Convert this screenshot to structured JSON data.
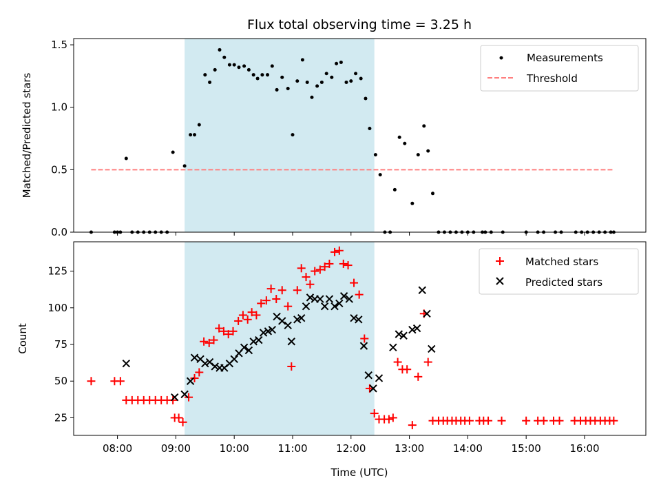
{
  "chart_data": {
    "title": "Flux total observing time = 3.25 h",
    "xlabel": "Time (UTC)",
    "x_unit": "hours UTC",
    "xlim": [
      7.25,
      17.05
    ],
    "x_ticks": [
      8,
      9,
      10,
      11,
      12,
      13,
      14,
      15,
      16
    ],
    "x_tick_labels": [
      "08:00",
      "09:00",
      "10:00",
      "11:00",
      "12:00",
      "13:00",
      "14:00",
      "15:00",
      "16:00"
    ],
    "shaded_span": {
      "x_start": 9.15,
      "x_end": 12.4,
      "color": "#add8e6"
    },
    "panels": [
      {
        "type": "scatter",
        "ylabel": "Matched/Predicted stars",
        "ylim": [
          0,
          1.55
        ],
        "y_ticks": [
          0.0,
          0.5,
          1.0,
          1.5
        ],
        "y_tick_labels": [
          "0.0",
          "0.5",
          "1.0",
          "1.5"
        ],
        "legend_position": "top-right",
        "series": [
          {
            "name": "Measurements",
            "marker": "dot",
            "color": "#000000",
            "points": [
              [
                7.55,
                0
              ],
              [
                7.95,
                0
              ],
              [
                8.0,
                0
              ],
              [
                8.05,
                0
              ],
              [
                8.15,
                0.59
              ],
              [
                8.25,
                0
              ],
              [
                8.35,
                0
              ],
              [
                8.45,
                0
              ],
              [
                8.55,
                0
              ],
              [
                8.65,
                0
              ],
              [
                8.75,
                0
              ],
              [
                8.85,
                0
              ],
              [
                8.95,
                0.64
              ],
              [
                9.15,
                0.53
              ],
              [
                9.25,
                0.78
              ],
              [
                9.32,
                0.78
              ],
              [
                9.4,
                0.86
              ],
              [
                9.5,
                1.26
              ],
              [
                9.58,
                1.2
              ],
              [
                9.67,
                1.3
              ],
              [
                9.75,
                1.46
              ],
              [
                9.83,
                1.4
              ],
              [
                9.92,
                1.34
              ],
              [
                10.0,
                1.34
              ],
              [
                10.08,
                1.32
              ],
              [
                10.17,
                1.33
              ],
              [
                10.25,
                1.3
              ],
              [
                10.33,
                1.26
              ],
              [
                10.4,
                1.23
              ],
              [
                10.48,
                1.26
              ],
              [
                10.57,
                1.26
              ],
              [
                10.65,
                1.33
              ],
              [
                10.73,
                1.14
              ],
              [
                10.82,
                1.24
              ],
              [
                10.92,
                1.15
              ],
              [
                11.0,
                0.78
              ],
              [
                11.08,
                1.21
              ],
              [
                11.17,
                1.38
              ],
              [
                11.25,
                1.2
              ],
              [
                11.33,
                1.08
              ],
              [
                11.42,
                1.17
              ],
              [
                11.5,
                1.2
              ],
              [
                11.58,
                1.27
              ],
              [
                11.67,
                1.24
              ],
              [
                11.75,
                1.35
              ],
              [
                11.83,
                1.36
              ],
              [
                11.92,
                1.2
              ],
              [
                12.0,
                1.21
              ],
              [
                12.08,
                1.27
              ],
              [
                12.17,
                1.23
              ],
              [
                12.25,
                1.07
              ],
              [
                12.32,
                0.83
              ],
              [
                12.42,
                0.62
              ],
              [
                12.5,
                0.46
              ],
              [
                12.58,
                0
              ],
              [
                12.67,
                0
              ],
              [
                12.75,
                0.34
              ],
              [
                12.83,
                0.76
              ],
              [
                12.92,
                0.71
              ],
              [
                13.05,
                0.23
              ],
              [
                13.15,
                0.62
              ],
              [
                13.25,
                0.85
              ],
              [
                13.32,
                0.65
              ],
              [
                13.4,
                0.31
              ],
              [
                13.5,
                0
              ],
              [
                13.6,
                0
              ],
              [
                13.7,
                0
              ],
              [
                13.8,
                0
              ],
              [
                13.9,
                0
              ],
              [
                14.0,
                0
              ],
              [
                14.1,
                0
              ],
              [
                14.25,
                0
              ],
              [
                14.3,
                0
              ],
              [
                14.4,
                0
              ],
              [
                14.6,
                0
              ],
              [
                15.0,
                0
              ],
              [
                15.2,
                0
              ],
              [
                15.3,
                0
              ],
              [
                15.5,
                0
              ],
              [
                15.6,
                0
              ],
              [
                15.85,
                0
              ],
              [
                15.95,
                0
              ],
              [
                16.05,
                0
              ],
              [
                16.15,
                0
              ],
              [
                16.25,
                0
              ],
              [
                16.35,
                0
              ],
              [
                16.45,
                0
              ],
              [
                16.5,
                0
              ]
            ]
          },
          {
            "name": "Threshold",
            "type": "line",
            "style": "dashed",
            "color": "#ff7f7f",
            "x": [
              7.55,
              16.5
            ],
            "y": [
              0.5,
              0.5
            ]
          }
        ]
      },
      {
        "type": "scatter",
        "ylabel": "Count",
        "ylim": [
          13,
          145
        ],
        "y_ticks": [
          25,
          50,
          75,
          100,
          125
        ],
        "y_tick_labels": [
          "25",
          "50",
          "75",
          "100",
          "125"
        ],
        "legend_position": "top-right",
        "series": [
          {
            "name": "Matched stars",
            "marker": "plus",
            "color": "#ff0000",
            "points": [
              [
                7.55,
                50
              ],
              [
                7.95,
                50
              ],
              [
                8.05,
                50
              ],
              [
                8.15,
                37
              ],
              [
                8.25,
                37
              ],
              [
                8.35,
                37
              ],
              [
                8.45,
                37
              ],
              [
                8.55,
                37
              ],
              [
                8.65,
                37
              ],
              [
                8.75,
                37
              ],
              [
                8.85,
                37
              ],
              [
                8.95,
                37
              ],
              [
                8.98,
                25
              ],
              [
                9.05,
                25
              ],
              [
                9.12,
                22
              ],
              [
                9.22,
                39
              ],
              [
                9.32,
                52
              ],
              [
                9.4,
                56
              ],
              [
                9.48,
                77
              ],
              [
                9.57,
                76
              ],
              [
                9.65,
                78
              ],
              [
                9.74,
                86
              ],
              [
                9.82,
                84
              ],
              [
                9.9,
                82
              ],
              [
                9.98,
                84
              ],
              [
                10.07,
                91
              ],
              [
                10.15,
                95
              ],
              [
                10.23,
                92
              ],
              [
                10.3,
                97
              ],
              [
                10.38,
                95
              ],
              [
                10.46,
                103
              ],
              [
                10.55,
                105
              ],
              [
                10.63,
                113
              ],
              [
                10.72,
                106
              ],
              [
                10.82,
                112
              ],
              [
                10.92,
                101
              ],
              [
                10.98,
                60
              ],
              [
                11.08,
                112
              ],
              [
                11.15,
                127
              ],
              [
                11.23,
                121
              ],
              [
                11.3,
                116
              ],
              [
                11.38,
                125
              ],
              [
                11.47,
                126
              ],
              [
                11.55,
                128
              ],
              [
                11.63,
                130
              ],
              [
                11.72,
                138
              ],
              [
                11.8,
                139
              ],
              [
                11.87,
                130
              ],
              [
                11.95,
                129
              ],
              [
                12.05,
                117
              ],
              [
                12.14,
                109
              ],
              [
                12.23,
                79
              ],
              [
                12.32,
                45
              ],
              [
                12.4,
                28
              ],
              [
                12.48,
                24
              ],
              [
                12.57,
                24
              ],
              [
                12.65,
                24
              ],
              [
                12.72,
                25
              ],
              [
                12.8,
                63
              ],
              [
                12.88,
                58
              ],
              [
                12.96,
                58
              ],
              [
                13.05,
                20
              ],
              [
                13.15,
                53
              ],
              [
                13.25,
                96
              ],
              [
                13.32,
                63
              ],
              [
                13.4,
                23
              ],
              [
                13.5,
                23
              ],
              [
                13.58,
                23
              ],
              [
                13.65,
                23
              ],
              [
                13.73,
                23
              ],
              [
                13.8,
                23
              ],
              [
                13.88,
                23
              ],
              [
                13.95,
                23
              ],
              [
                14.03,
                23
              ],
              [
                14.2,
                23
              ],
              [
                14.27,
                23
              ],
              [
                14.35,
                23
              ],
              [
                14.58,
                23
              ],
              [
                15.0,
                23
              ],
              [
                15.2,
                23
              ],
              [
                15.3,
                23
              ],
              [
                15.47,
                23
              ],
              [
                15.57,
                23
              ],
              [
                15.83,
                23
              ],
              [
                15.93,
                23
              ],
              [
                16.02,
                23
              ],
              [
                16.1,
                23
              ],
              [
                16.18,
                23
              ],
              [
                16.27,
                23
              ],
              [
                16.35,
                23
              ],
              [
                16.43,
                23
              ],
              [
                16.5,
                23
              ]
            ]
          },
          {
            "name": "Predicted stars",
            "marker": "x",
            "color": "#000000",
            "points": [
              [
                8.15,
                62
              ],
              [
                8.98,
                39
              ],
              [
                9.15,
                41
              ],
              [
                9.25,
                50
              ],
              [
                9.32,
                66
              ],
              [
                9.42,
                65
              ],
              [
                9.5,
                62
              ],
              [
                9.58,
                63
              ],
              [
                9.67,
                60
              ],
              [
                9.75,
                59
              ],
              [
                9.83,
                59
              ],
              [
                9.92,
                62
              ],
              [
                10.0,
                65
              ],
              [
                10.08,
                69
              ],
              [
                10.17,
                73
              ],
              [
                10.25,
                71
              ],
              [
                10.33,
                77
              ],
              [
                10.42,
                78
              ],
              [
                10.5,
                83
              ],
              [
                10.58,
                84
              ],
              [
                10.65,
                85
              ],
              [
                10.73,
                94
              ],
              [
                10.82,
                91
              ],
              [
                10.92,
                88
              ],
              [
                10.98,
                77
              ],
              [
                11.08,
                92
              ],
              [
                11.15,
                93
              ],
              [
                11.23,
                101
              ],
              [
                11.3,
                107
              ],
              [
                11.38,
                106
              ],
              [
                11.47,
                106
              ],
              [
                11.55,
                101
              ],
              [
                11.63,
                106
              ],
              [
                11.72,
                101
              ],
              [
                11.8,
                103
              ],
              [
                11.88,
                108
              ],
              [
                11.97,
                106
              ],
              [
                12.05,
                93
              ],
              [
                12.13,
                92
              ],
              [
                12.22,
                74
              ],
              [
                12.3,
                54
              ],
              [
                12.38,
                45
              ],
              [
                12.48,
                52
              ],
              [
                12.72,
                73
              ],
              [
                12.82,
                82
              ],
              [
                12.9,
                81
              ],
              [
                13.05,
                85
              ],
              [
                13.13,
                86
              ],
              [
                13.22,
                112
              ],
              [
                13.3,
                96
              ],
              [
                13.38,
                72
              ]
            ]
          }
        ]
      }
    ]
  }
}
